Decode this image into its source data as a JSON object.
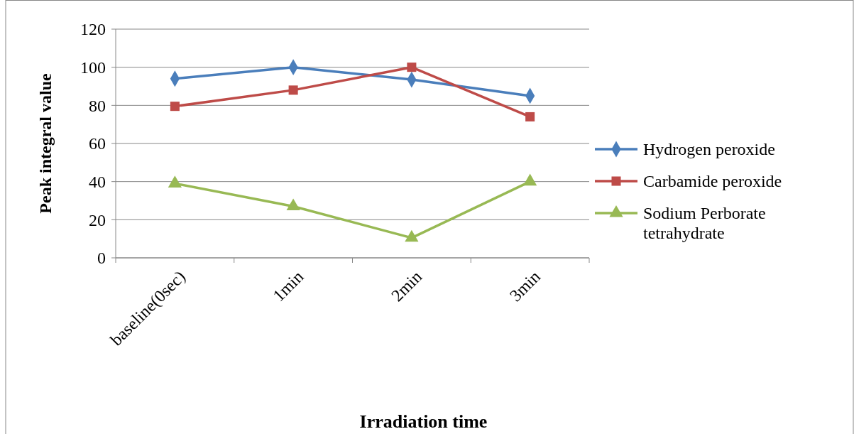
{
  "chart_data": {
    "type": "line",
    "xlabel": "Irradiation time",
    "ylabel": "Peak integral value",
    "categories": [
      "baseline(0sec)",
      "1min",
      "2min",
      "3min"
    ],
    "series": [
      {
        "name": "Hydrogen peroxide",
        "color": "#4a7ebb",
        "marker": "diamond",
        "values": [
          94,
          100,
          93.5,
          85
        ]
      },
      {
        "name": "Carbamide peroxide",
        "color": "#be4b48",
        "marker": "square",
        "values": [
          79.5,
          88,
          100,
          74
        ]
      },
      {
        "name": "Sodium Perborate tetrahydrate",
        "color": "#98b954",
        "marker": "triangle",
        "values": [
          39,
          27,
          10.5,
          40
        ]
      }
    ],
    "ylim": [
      0,
      120
    ],
    "yticks": [
      0,
      20,
      40,
      60,
      80,
      100,
      120
    ],
    "grid": "y",
    "legend": "right"
  }
}
